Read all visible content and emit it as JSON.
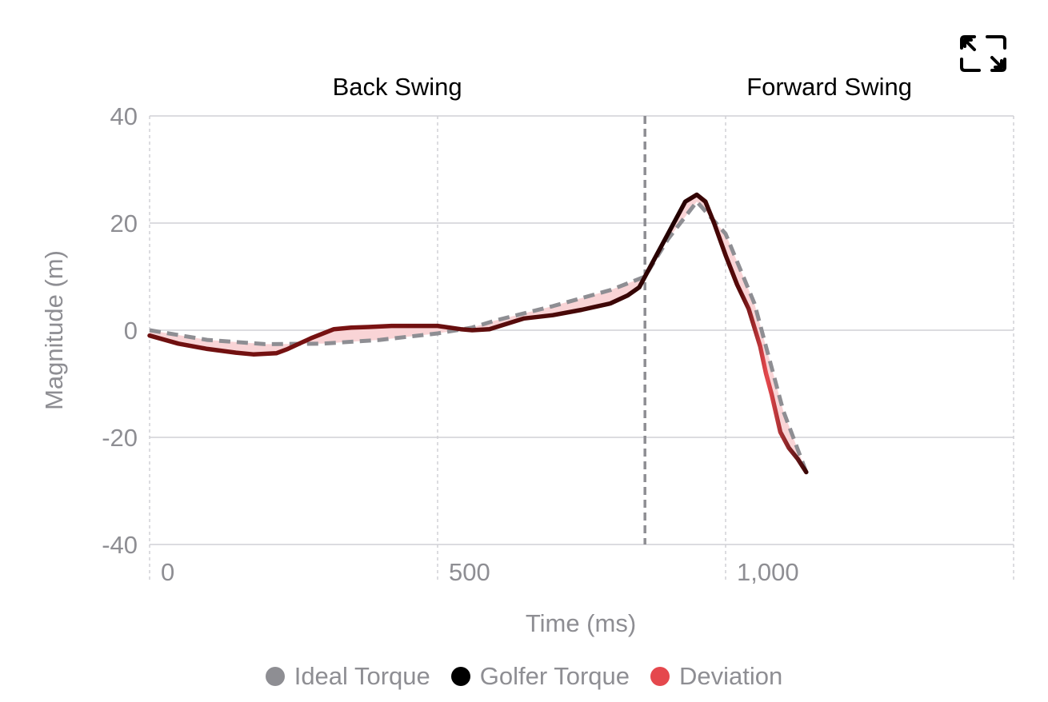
{
  "expand_icon": "expand-icon",
  "chart_data": {
    "type": "line",
    "xlabel": "Time (ms)",
    "ylabel": "Magnitude (m)",
    "xlim": [
      0,
      1500
    ],
    "ylim": [
      -40,
      40
    ],
    "x_ticks": [
      0,
      500,
      1000,
      1500
    ],
    "x_tick_labels": [
      "0",
      "500",
      "1,000",
      ""
    ],
    "y_ticks": [
      40,
      20,
      0,
      -20,
      -40
    ],
    "y_tick_labels": [
      "40",
      "20",
      "0",
      "-20",
      "-40"
    ],
    "grid": true,
    "legend_position": "bottom",
    "phase_divider_x": 860,
    "phases": [
      {
        "label": "Back Swing",
        "center_x": 430
      },
      {
        "label": "Forward Swing",
        "center_x": 1180
      }
    ],
    "colors": {
      "ideal": "#8e8e93",
      "golfer": "#000000",
      "deviation": "#e5484d",
      "deviation_fill": "#f9d4d6",
      "grid": "#d1d1d6",
      "axis_text": "#8e8e93"
    },
    "series": [
      {
        "name": "Ideal Torque",
        "style": "dashed",
        "x": [
          0,
          100,
          200,
          300,
          400,
          500,
          560,
          600,
          700,
          800,
          860,
          900,
          950,
          1000,
          1050,
          1100,
          1140
        ],
        "y": [
          0,
          -1.8,
          -2.6,
          -2.5,
          -1.8,
          -0.6,
          0.5,
          1.8,
          4.5,
          7.5,
          10,
          17,
          24,
          18,
          5,
          -15,
          -26.5
        ]
      },
      {
        "name": "Golfer Torque",
        "style": "solid",
        "x": [
          0,
          50,
          100,
          150,
          180,
          220,
          240,
          280,
          320,
          350,
          380,
          420,
          460,
          500,
          540,
          560,
          590,
          620,
          650,
          700,
          750,
          800,
          830,
          850,
          870,
          880,
          900,
          930,
          950,
          965,
          980,
          1000,
          1020,
          1040,
          1060,
          1070,
          1080,
          1095,
          1110,
          1125,
          1140
        ],
        "y": [
          -1,
          -2.5,
          -3.5,
          -4.2,
          -4.5,
          -4.3,
          -3.5,
          -1.5,
          0.2,
          0.5,
          0.6,
          0.8,
          0.8,
          0.8,
          0.2,
          0,
          0.2,
          1.2,
          2.2,
          2.8,
          3.8,
          5,
          6.5,
          8,
          12,
          14,
          18,
          24,
          25.3,
          24,
          20,
          14,
          8.5,
          4,
          -3,
          -8,
          -12,
          -19,
          -22,
          -24,
          -26.5
        ]
      }
    ]
  }
}
